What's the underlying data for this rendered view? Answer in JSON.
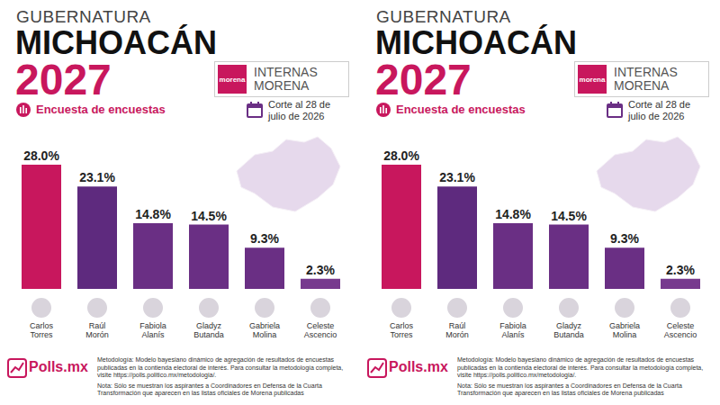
{
  "chart_data": [
    {
      "type": "bar",
      "title": "GUBERNATURA",
      "headline": "MICHOACÁN",
      "year": "2027",
      "logo": "morena",
      "badge": "INTERNAS MORENA",
      "label": "Encuesta de encuestas",
      "date": "Corte al 28 de julio de 2026",
      "categories": [
        "Carlos Torres",
        "Raúl Morón",
        "Fabiola Alanís",
        "Gladyz Butanda",
        "Gabriela Molina",
        "Celeste Ascencio"
      ],
      "values": [
        28.0,
        23.1,
        14.8,
        14.5,
        9.3,
        2.3
      ],
      "value_labels": [
        "28.0%",
        "23.1%",
        "14.8%",
        "14.5%",
        "9.3%",
        "2.3%"
      ],
      "colors": [
        "#c8175d",
        "#5e2a7e",
        "#6a2f84",
        "#6a2f84",
        "#6a2f84",
        "#773a8e"
      ],
      "ylim": [
        0,
        28
      ],
      "tick_labels": false,
      "data_labels": true,
      "grid": false,
      "brand": "Polls.mx",
      "methodology": "Metodología: Modelo bayesiano dinámico de agregación de resultados de encuestas publicadas en la contienda electoral de interés. Para consultar la metodología completa, visite https://polls.politico.mx/metodologia/.",
      "note": "Nota: Sólo se muestran los aspirantes a Coordinadores en Defensa de la Cuarta Transformación que aparecen en las listas oficiales de Morena publicadas"
    },
    {
      "type": "bar",
      "title": "GUBERNATURA",
      "headline": "MICHOACÁN",
      "year": "2027",
      "logo": "morena",
      "badge": "INTERNAS MORENA",
      "label": "Encuesta de encuestas",
      "date": "Corte al 28 de julio de 2026",
      "categories": [
        "Carlos Torres",
        "Raúl Morón",
        "Fabiola Alanís",
        "Gladyz Butanda",
        "Gabriela Molina",
        "Celeste Ascencio"
      ],
      "values": [
        28.0,
        23.1,
        14.8,
        14.5,
        9.3,
        2.3
      ],
      "value_labels": [
        "28.0%",
        "23.1%",
        "14.8%",
        "14.5%",
        "9.3%",
        "2.3%"
      ],
      "colors": [
        "#c8175d",
        "#5e2a7e",
        "#6a2f84",
        "#6a2f84",
        "#6a2f84",
        "#773a8e"
      ],
      "ylim": [
        0,
        28
      ],
      "tick_labels": false,
      "data_labels": true,
      "grid": false,
      "brand": "Polls.mx",
      "methodology": "Metodología: Modelo bayesiano dinámico de agregación de resultados de encuestas publicadas en la contienda electoral de interés. Para consultar la metodología completa, visite https://polls.politico.mx/metodologia/.",
      "note": "Nota: Sólo se muestran los aspirantes a Coordinadores en Defensa de la Cuarta Transformación que aparecen en las listas oficiales de Morena publicadas"
    }
  ]
}
